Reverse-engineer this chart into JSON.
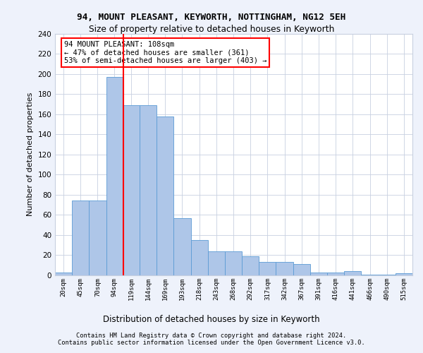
{
  "title1": "94, MOUNT PLEASANT, KEYWORTH, NOTTINGHAM, NG12 5EH",
  "title2": "Size of property relative to detached houses in Keyworth",
  "xlabel": "Distribution of detached houses by size in Keyworth",
  "ylabel": "Number of detached properties",
  "bin_labels": [
    "20sqm",
    "45sqm",
    "70sqm",
    "94sqm",
    "119sqm",
    "144sqm",
    "169sqm",
    "193sqm",
    "218sqm",
    "243sqm",
    "268sqm",
    "292sqm",
    "317sqm",
    "342sqm",
    "367sqm",
    "391sqm",
    "416sqm",
    "441sqm",
    "466sqm",
    "490sqm",
    "515sqm"
  ],
  "bin_edges": [
    7.5,
    32.5,
    57.5,
    82.5,
    106.5,
    131.5,
    156.5,
    181.5,
    206.5,
    231.5,
    256.5,
    281.5,
    306.5,
    331.5,
    356.5,
    381.5,
    406.5,
    431.5,
    456.5,
    481.5,
    506.5,
    531.5
  ],
  "values": [
    3,
    74,
    74,
    197,
    169,
    169,
    158,
    57,
    35,
    24,
    24,
    19,
    13,
    13,
    11,
    3,
    3,
    4,
    1,
    1,
    2
  ],
  "bar_color": "#aec6e8",
  "bar_edge_color": "#5b9bd5",
  "red_line_x": 108,
  "annotation_box_text": "94 MOUNT PLEASANT: 108sqm\n← 47% of detached houses are smaller (361)\n53% of semi-detached houses are larger (403) →",
  "ylim": [
    0,
    240
  ],
  "yticks": [
    0,
    20,
    40,
    60,
    80,
    100,
    120,
    140,
    160,
    180,
    200,
    220,
    240
  ],
  "footer1": "Contains HM Land Registry data © Crown copyright and database right 2024.",
  "footer2": "Contains public sector information licensed under the Open Government Licence v3.0.",
  "background_color": "#eef2fb",
  "plot_background": "#ffffff",
  "grid_color": "#c8d0e0"
}
